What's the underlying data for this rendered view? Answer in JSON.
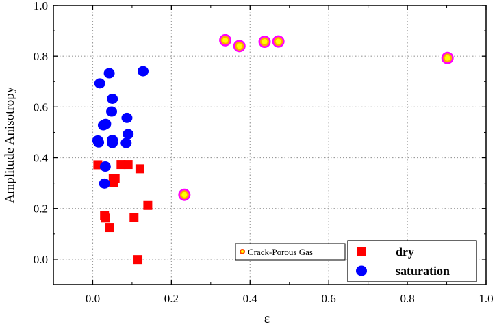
{
  "chart_data": {
    "type": "scatter",
    "xlabel": "ε",
    "ylabel": "Amplitude Anisotropy",
    "xlim": [
      -0.1,
      1.0
    ],
    "ylim": [
      -0.1,
      1.0
    ],
    "xticks": [
      "0.0",
      "0.2",
      "0.4",
      "0.6",
      "0.8",
      "1.0"
    ],
    "xtick_values": [
      0.0,
      0.2,
      0.4,
      0.6,
      0.8,
      1.0
    ],
    "yticks": [
      "0.0",
      "0.2",
      "0.4",
      "0.6",
      "0.8",
      "1.0"
    ],
    "ytick_values": [
      0.0,
      0.2,
      0.4,
      0.6,
      0.8,
      1.0
    ],
    "grid": true,
    "legend_placement": "bottom-right",
    "series": [
      {
        "name": "dry",
        "marker": "square",
        "color": "#ff0000",
        "points": [
          [
            0.013,
            0.372
          ],
          [
            0.072,
            0.373
          ],
          [
            0.09,
            0.373
          ],
          [
            0.12,
            0.356
          ],
          [
            0.052,
            0.318
          ],
          [
            0.057,
            0.319
          ],
          [
            0.053,
            0.303
          ],
          [
            0.14,
            0.212
          ],
          [
            0.03,
            0.172
          ],
          [
            0.033,
            0.162
          ],
          [
            0.105,
            0.163
          ],
          [
            0.042,
            0.125
          ],
          [
            0.115,
            -0.002
          ]
        ]
      },
      {
        "name": "saturation",
        "marker": "circle",
        "color": "#0000ff",
        "points": [
          [
            0.042,
            0.733
          ],
          [
            0.128,
            0.741
          ],
          [
            0.018,
            0.693
          ],
          [
            0.05,
            0.632
          ],
          [
            0.048,
            0.582
          ],
          [
            0.087,
            0.557
          ],
          [
            0.033,
            0.533
          ],
          [
            0.027,
            0.528
          ],
          [
            0.09,
            0.493
          ],
          [
            0.013,
            0.468
          ],
          [
            0.015,
            0.46
          ],
          [
            0.05,
            0.47
          ],
          [
            0.05,
            0.458
          ],
          [
            0.085,
            0.458
          ],
          [
            0.032,
            0.365
          ],
          [
            0.03,
            0.298
          ]
        ]
      },
      {
        "name": "Crack-Porous Gas",
        "marker": "ring",
        "color": "#ffff00",
        "edge": "#ff00ff",
        "points": [
          [
            0.337,
            0.863
          ],
          [
            0.373,
            0.84
          ],
          [
            0.437,
            0.857
          ],
          [
            0.472,
            0.858
          ],
          [
            0.902,
            0.793
          ],
          [
            0.233,
            0.254
          ]
        ]
      }
    ]
  }
}
